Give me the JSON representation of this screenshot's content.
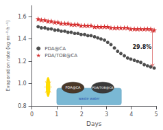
{
  "chart_data": {
    "type": "scatter",
    "xlabel": "Days",
    "ylabel": "Evaporation rate (kg·m⁻²·h⁻¹)",
    "xlim": [
      0,
      5
    ],
    "ylim": [
      0.8,
      1.7
    ],
    "xticks": [
      0,
      1,
      2,
      3,
      4,
      5
    ],
    "yticks": [
      0.8,
      {
        "value": 1.0,
        "label": "1.0"
      },
      1.2,
      1.4,
      1.6
    ],
    "grid": false,
    "legend": "upper left",
    "series": [
      {
        "name": "PDA@CA",
        "color": "#222222",
        "marker": "circle",
        "x": [
          0.25,
          0.38,
          0.52,
          0.65,
          0.78,
          0.92,
          1.05,
          1.18,
          1.32,
          1.45,
          1.58,
          1.72,
          1.85,
          1.98,
          2.12,
          2.25,
          2.38,
          2.52,
          2.65,
          2.78,
          2.92,
          3.05,
          3.18,
          3.32,
          3.45,
          3.58,
          3.72,
          3.85,
          3.98,
          4.12,
          4.25,
          4.38,
          4.52,
          4.65,
          4.78,
          4.92
        ],
        "values": [
          1.51,
          1.5,
          1.5,
          1.49,
          1.49,
          1.48,
          1.48,
          1.47,
          1.47,
          1.46,
          1.46,
          1.45,
          1.45,
          1.44,
          1.44,
          1.43,
          1.43,
          1.42,
          1.41,
          1.4,
          1.39,
          1.37,
          1.35,
          1.32,
          1.29,
          1.27,
          1.25,
          1.23,
          1.22,
          1.21,
          1.2,
          1.19,
          1.17,
          1.16,
          1.15,
          1.14
        ]
      },
      {
        "name": "PDA/TOB@CA",
        "color": "#cc0000",
        "marker": "star",
        "x": [
          0.25,
          0.38,
          0.52,
          0.65,
          0.78,
          0.92,
          1.05,
          1.18,
          1.32,
          1.45,
          1.58,
          1.72,
          1.85,
          1.98,
          2.12,
          2.25,
          2.38,
          2.52,
          2.65,
          2.78,
          2.92,
          3.05,
          3.18,
          3.32,
          3.45,
          3.58,
          3.72,
          3.85,
          3.98,
          4.12,
          4.25,
          4.38,
          4.52,
          4.65,
          4.78,
          4.92
        ],
        "values": [
          1.58,
          1.57,
          1.57,
          1.56,
          1.56,
          1.55,
          1.55,
          1.54,
          1.54,
          1.54,
          1.53,
          1.53,
          1.53,
          1.52,
          1.52,
          1.52,
          1.52,
          1.51,
          1.51,
          1.51,
          1.51,
          1.51,
          1.5,
          1.5,
          1.5,
          1.5,
          1.5,
          1.5,
          1.49,
          1.49,
          1.49,
          1.49,
          1.49,
          1.49,
          1.49,
          1.48
        ]
      }
    ],
    "annotations": [
      "29.8%",
      "waste water",
      "PDA@CA",
      "PDA/TOB@CA"
    ]
  }
}
